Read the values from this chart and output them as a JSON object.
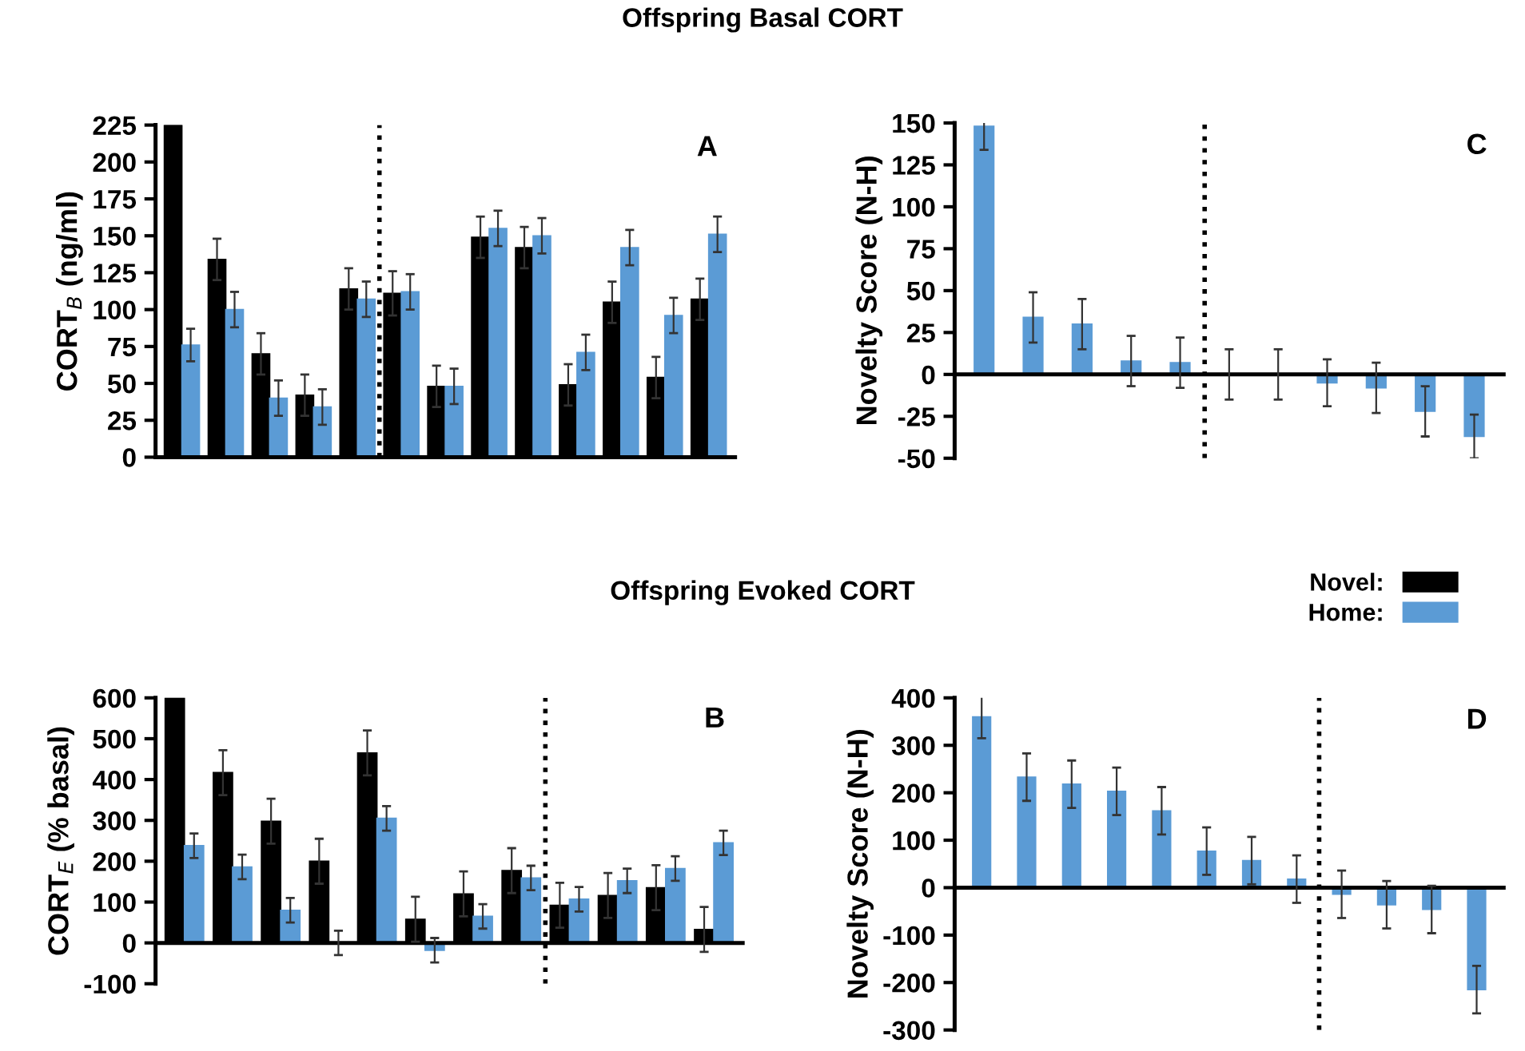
{
  "chart_data": [
    {
      "type": "bar",
      "title": "Offspring Basal CORT",
      "ylabel": "CORT$_{B}$ (ng/ml)",
      "annotations": [
        "A"
      ],
      "categories": [
        null,
        null,
        null,
        null,
        null,
        null,
        null,
        null,
        null,
        null,
        null,
        null,
        null
      ],
      "ylim": [
        0,
        225
      ],
      "yticks": [
        0,
        25,
        50,
        75,
        100,
        125,
        150,
        175,
        200,
        225
      ],
      "tick_labels": "y",
      "grid": false,
      "legend": false,
      "series": [
        {
          "color": "#000000",
          "values": [
            225,
            134,
            70,
            42,
            114,
            111,
            48,
            149,
            142,
            49,
            105,
            54,
            107
          ],
          "errors": [
            null,
            14,
            14,
            14,
            14,
            15,
            14,
            14,
            14,
            14,
            14,
            14,
            14
          ]
        },
        {
          "color": "#5b9bd5",
          "values": [
            76,
            100,
            40,
            34,
            107,
            112,
            48,
            155,
            150,
            71,
            142,
            96,
            151
          ],
          "errors": [
            11,
            12,
            12,
            12,
            12,
            12,
            12,
            12,
            12,
            12,
            12,
            12,
            12
          ]
        }
      ]
    },
    {
      "type": "bar",
      "ylabel": "Novelty Score (N-H)",
      "annotations": [
        "C"
      ],
      "categories": [
        null,
        null,
        null,
        null,
        null,
        null,
        null,
        null,
        null,
        null,
        null
      ],
      "ylim": [
        -50,
        150
      ],
      "yticks": [
        -50,
        -25,
        0,
        25,
        50,
        75,
        100,
        125,
        150
      ],
      "tick_labels": "y",
      "grid": false,
      "legend": false,
      "series": [
        {
          "color": "#5b9bd5",
          "values": [
            148,
            34,
            30,
            8,
            7,
            0,
            0,
            -5,
            -8,
            -22,
            -37
          ],
          "errors": [
            14,
            15,
            15,
            15,
            15,
            15,
            15,
            14,
            15,
            15,
            13
          ]
        }
      ]
    },
    {
      "type": "bar",
      "title": "Offspring Evoked CORT",
      "ylabel": "CORT$_{E}$ (% basal)",
      "annotations": [
        "B"
      ],
      "categories": [
        null,
        null,
        null,
        null,
        null,
        null,
        null,
        null,
        null,
        null,
        null,
        null
      ],
      "ylim": [
        -100,
        600
      ],
      "yticks": [
        -100,
        0,
        100,
        200,
        300,
        400,
        500,
        600
      ],
      "tick_labels": "y",
      "grid": false,
      "legend": "top right",
      "series": [
        {
          "name": "Novel:",
          "color": "#000000",
          "values": [
            600,
            417,
            298,
            200,
            465,
            58,
            120,
            177,
            92,
            116,
            135,
            33
          ],
          "errors": [
            null,
            55,
            55,
            55,
            55,
            55,
            55,
            55,
            55,
            55,
            55,
            55
          ]
        },
        {
          "name": "Home:",
          "color": "#5b9bd5",
          "values": [
            238,
            186,
            80,
            0,
            305,
            -18,
            65,
            159,
            107,
            152,
            182,
            245
          ],
          "errors": [
            30,
            30,
            30,
            30,
            30,
            30,
            30,
            30,
            30,
            30,
            30,
            30
          ]
        }
      ]
    },
    {
      "type": "bar",
      "ylabel": "Novelty Score (N-H)",
      "annotations": [
        "D"
      ],
      "categories": [
        null,
        null,
        null,
        null,
        null,
        null,
        null,
        null,
        null,
        null,
        null,
        null
      ],
      "ylim": [
        -300,
        400
      ],
      "yticks": [
        -300,
        -200,
        -100,
        0,
        100,
        200,
        300,
        400
      ],
      "tick_labels": "y",
      "grid": false,
      "legend": false,
      "series": [
        {
          "color": "#5b9bd5",
          "values": [
            360,
            233,
            218,
            203,
            162,
            77,
            57,
            18,
            -14,
            -36,
            -46,
            -215
          ],
          "errors": [
            45,
            50,
            50,
            50,
            50,
            50,
            50,
            50,
            50,
            50,
            50,
            50
          ]
        }
      ]
    }
  ]
}
